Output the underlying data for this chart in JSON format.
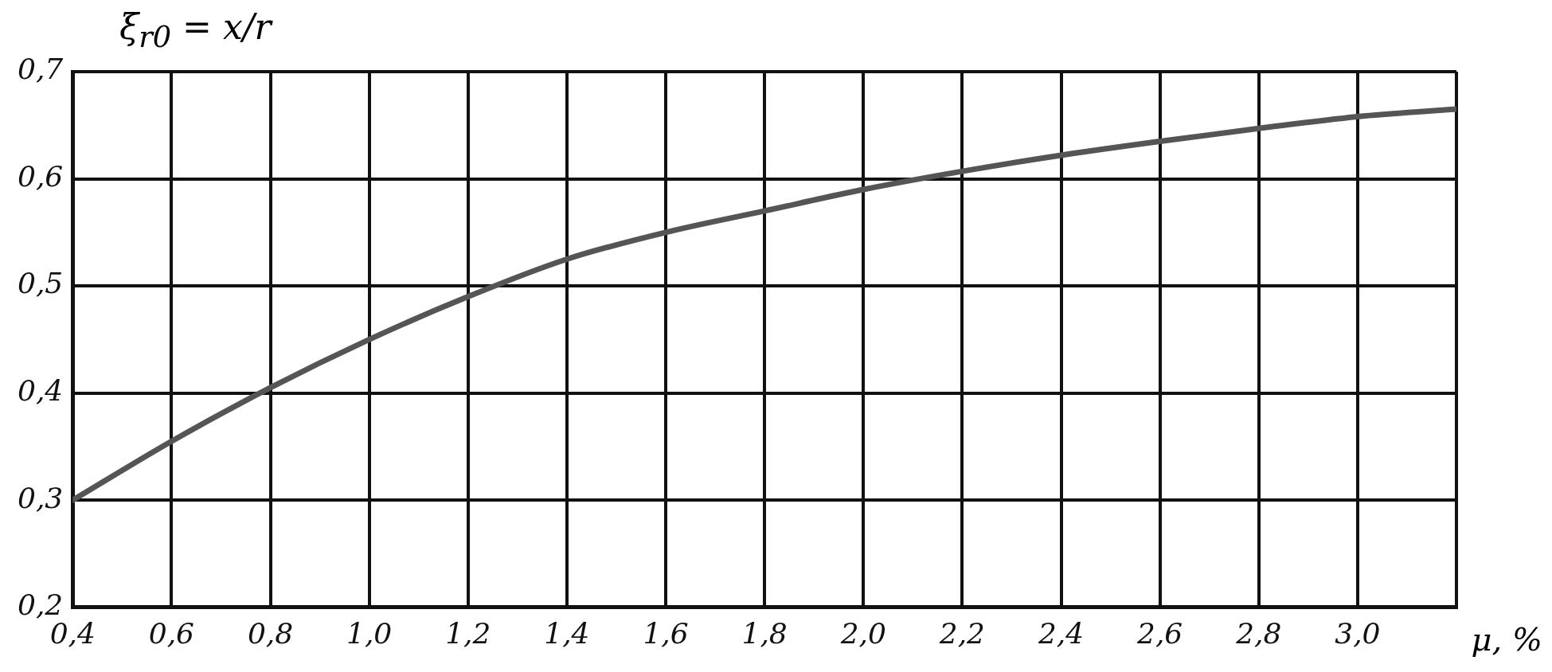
{
  "chart_data": {
    "type": "line",
    "ylabel": "ξ$_{r0}$ = x/r",
    "xlabel": "μ, %",
    "x": [
      0.4,
      0.6,
      0.8,
      1.0,
      1.2,
      1.4,
      1.6,
      1.8,
      2.0,
      2.2,
      2.4,
      2.6,
      2.8,
      3.0,
      3.2
    ],
    "series": [
      {
        "color": "#555555",
        "values": [
          0.3,
          0.355,
          0.405,
          0.45,
          0.49,
          0.525,
          0.55,
          0.57,
          0.59,
          0.607,
          0.622,
          0.635,
          0.647,
          0.658,
          0.665
        ]
      }
    ],
    "xlim": [
      0.4,
      3.2
    ],
    "xticks": [
      {
        "value": 0.4,
        "label": "0,4"
      },
      {
        "value": 0.6,
        "label": "0,6"
      },
      {
        "value": 0.8,
        "label": "0,8"
      },
      {
        "value": 1.0,
        "label": "1,0"
      },
      {
        "value": 1.2,
        "label": "1,2"
      },
      {
        "value": 1.4,
        "label": "1,4"
      },
      {
        "value": 1.6,
        "label": "1,6"
      },
      {
        "value": 1.8,
        "label": "1,8"
      },
      {
        "value": 2.0,
        "label": "2,0"
      },
      {
        "value": 2.2,
        "label": "2,2"
      },
      {
        "value": 2.4,
        "label": "2,4"
      },
      {
        "value": 2.6,
        "label": "2,6"
      },
      {
        "value": 2.8,
        "label": "2,8"
      },
      {
        "value": 3.0,
        "label": "3,0"
      },
      {
        "value": 3.2,
        "label": null
      }
    ],
    "ylim": [
      0.2,
      0.7
    ],
    "yticks": [
      {
        "value": 0.2,
        "label": "0,2"
      },
      {
        "value": 0.3,
        "label": "0,3"
      },
      {
        "value": 0.4,
        "label": "0,4"
      },
      {
        "value": 0.5,
        "label": "0,5"
      },
      {
        "value": 0.6,
        "label": "0,6"
      },
      {
        "value": 0.7,
        "label": "0,7"
      }
    ],
    "grid": true,
    "legend": false,
    "marker": "none",
    "line_style": "solid"
  }
}
